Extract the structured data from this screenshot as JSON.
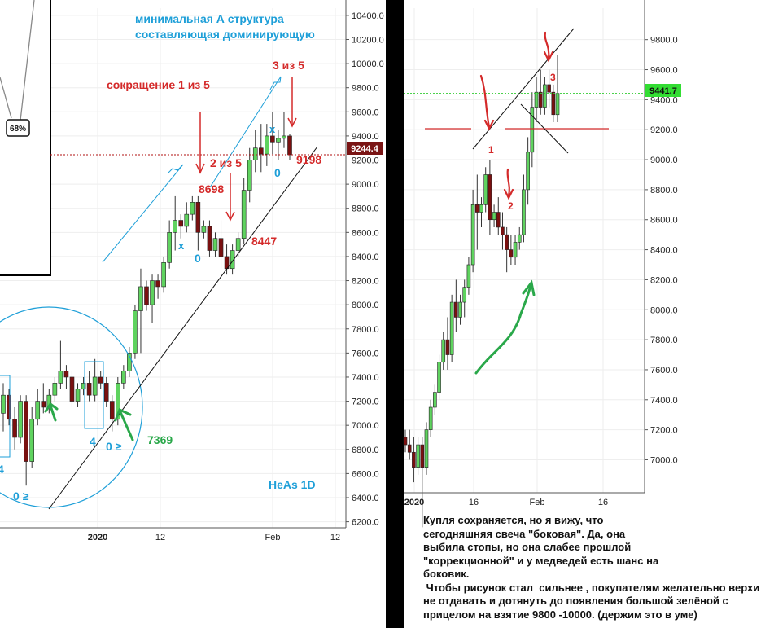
{
  "chart_data": [
    {
      "type": "candlestick",
      "watermark": "HeAs 1D",
      "y_ticks": [
        "10400.0",
        "10200.0",
        "10000.0",
        "9800.0",
        "9600.0",
        "9400.0",
        "9200.0",
        "9000.0",
        "8800.0",
        "8600.0",
        "8400.0",
        "8200.0",
        "8000.0",
        "7800.0",
        "7600.0",
        "7400.0",
        "7200.0",
        "7000.0",
        "6800.0",
        "6600.0",
        "6400.0",
        "6200.0"
      ],
      "x_ticks": [
        "2020",
        "12",
        "Feb",
        "12"
      ],
      "price_line": {
        "label": "9244.4",
        "value": 9244.4
      },
      "ylim": [
        6150,
        10460
      ],
      "candles": [
        {
          "o": 7100,
          "h": 7350,
          "l": 6950,
          "c": 7250
        },
        {
          "o": 7250,
          "h": 7300,
          "l": 7000,
          "c": 7050
        },
        {
          "o": 7050,
          "h": 7150,
          "l": 6800,
          "c": 6900
        },
        {
          "o": 6900,
          "h": 7250,
          "l": 6850,
          "c": 7200
        },
        {
          "o": 7200,
          "h": 7250,
          "l": 6500,
          "c": 6700
        },
        {
          "o": 6700,
          "h": 7150,
          "l": 6650,
          "c": 7050
        },
        {
          "o": 7050,
          "h": 7300,
          "l": 7000,
          "c": 7200
        },
        {
          "o": 7200,
          "h": 7350,
          "l": 7100,
          "c": 7150
        },
        {
          "o": 7150,
          "h": 7300,
          "l": 7100,
          "c": 7250
        },
        {
          "o": 7250,
          "h": 7400,
          "l": 7200,
          "c": 7350
        },
        {
          "o": 7350,
          "h": 7700,
          "l": 7300,
          "c": 7450
        },
        {
          "o": 7450,
          "h": 7500,
          "l": 7300,
          "c": 7400
        },
        {
          "o": 7400,
          "h": 7450,
          "l": 7150,
          "c": 7200
        },
        {
          "o": 7200,
          "h": 7350,
          "l": 7150,
          "c": 7300
        },
        {
          "o": 7300,
          "h": 7400,
          "l": 7250,
          "c": 7350
        },
        {
          "o": 7350,
          "h": 7450,
          "l": 7200,
          "c": 7250
        },
        {
          "o": 7250,
          "h": 7550,
          "l": 7200,
          "c": 7400
        },
        {
          "o": 7400,
          "h": 7450,
          "l": 7300,
          "c": 7350
        },
        {
          "o": 7350,
          "h": 7400,
          "l": 7150,
          "c": 7200
        },
        {
          "o": 7200,
          "h": 7250,
          "l": 6950,
          "c": 7050
        },
        {
          "o": 7050,
          "h": 7400,
          "l": 7000,
          "c": 7350
        },
        {
          "o": 7350,
          "h": 7500,
          "l": 7300,
          "c": 7450
        },
        {
          "o": 7450,
          "h": 7650,
          "l": 7400,
          "c": 7600
        },
        {
          "o": 7600,
          "h": 8000,
          "l": 7550,
          "c": 7950
        },
        {
          "o": 7950,
          "h": 8300,
          "l": 7600,
          "c": 8150
        },
        {
          "o": 8150,
          "h": 8200,
          "l": 7950,
          "c": 8000
        },
        {
          "o": 8000,
          "h": 8250,
          "l": 7850,
          "c": 8200
        },
        {
          "o": 8200,
          "h": 8250,
          "l": 8050,
          "c": 8150
        },
        {
          "o": 8150,
          "h": 8400,
          "l": 8100,
          "c": 8350
        },
        {
          "o": 8350,
          "h": 8700,
          "l": 8300,
          "c": 8600
        },
        {
          "o": 8600,
          "h": 8900,
          "l": 8450,
          "c": 8700
        },
        {
          "o": 8700,
          "h": 8750,
          "l": 8550,
          "c": 8650
        },
        {
          "o": 8650,
          "h": 8850,
          "l": 8600,
          "c": 8750
        },
        {
          "o": 8750,
          "h": 8900,
          "l": 8700,
          "c": 8850
        },
        {
          "o": 8850,
          "h": 8900,
          "l": 8450,
          "c": 8600
        },
        {
          "o": 8600,
          "h": 8700,
          "l": 8550,
          "c": 8650
        },
        {
          "o": 8650,
          "h": 8700,
          "l": 8400,
          "c": 8450
        },
        {
          "o": 8450,
          "h": 8600,
          "l": 8400,
          "c": 8550
        },
        {
          "o": 8550,
          "h": 8700,
          "l": 8300,
          "c": 8400
        },
        {
          "o": 8400,
          "h": 8500,
          "l": 8250,
          "c": 8300
        },
        {
          "o": 8300,
          "h": 8500,
          "l": 8250,
          "c": 8450
        },
        {
          "o": 8450,
          "h": 8600,
          "l": 8400,
          "c": 8550
        },
        {
          "o": 8550,
          "h": 9050,
          "l": 8500,
          "c": 8950
        },
        {
          "o": 8950,
          "h": 9300,
          "l": 8850,
          "c": 9200
        },
        {
          "o": 9200,
          "h": 9450,
          "l": 9100,
          "c": 9300
        },
        {
          "o": 9300,
          "h": 9500,
          "l": 9100,
          "c": 9250
        },
        {
          "o": 9250,
          "h": 9500,
          "l": 9150,
          "c": 9400
        },
        {
          "o": 9400,
          "h": 9600,
          "l": 9250,
          "c": 9350
        },
        {
          "o": 9350,
          "h": 9450,
          "l": 9200,
          "c": 9380
        },
        {
          "o": 9380,
          "h": 9600,
          "l": 9300,
          "c": 9400
        },
        {
          "o": 9400,
          "h": 9420,
          "l": 9200,
          "c": 9244.4
        }
      ],
      "annotations": {
        "title_line1": "минимальная А структура",
        "title_line2": "составляющая доминирующую",
        "cut": "сокращение  1 из 5",
        "three_of_five": "3 из 5",
        "two_of_five": "2 из 5",
        "v8698": "8698",
        "v8447": "8447",
        "v9198": "9198",
        "v7369": "7369",
        "zero_a": "0",
        "zero_b": "0",
        "x_a": "x",
        "x_b": "x",
        "four_a": "4",
        "four_b": "4",
        "zero_ge_a": "0 ≥",
        "zero_ge_b": "0 ≥",
        "pct": "68%"
      }
    },
    {
      "type": "candlestick",
      "y_ticks": [
        "9800.0",
        "9600.0",
        "9400.0",
        "9200.0",
        "9000.0",
        "8800.0",
        "8600.0",
        "8400.0",
        "8200.0",
        "8000.0",
        "7800.0",
        "7600.0",
        "7400.0",
        "7200.0",
        "7000.0"
      ],
      "x_ticks": [
        "2020",
        "16",
        "Feb",
        "16"
      ],
      "price_line": {
        "label": "9441.7",
        "value": 9441.7
      },
      "ylim": [
        6780,
        10010
      ],
      "candles": [
        {
          "o": 7150,
          "h": 7200,
          "l": 7050,
          "c": 7100
        },
        {
          "o": 7100,
          "h": 7200,
          "l": 7000,
          "c": 7050
        },
        {
          "o": 7050,
          "h": 7150,
          "l": 6850,
          "c": 6950
        },
        {
          "o": 6950,
          "h": 7150,
          "l": 6900,
          "c": 7100
        },
        {
          "o": 7100,
          "h": 7150,
          "l": 6550,
          "c": 6950
        },
        {
          "o": 6950,
          "h": 7250,
          "l": 6900,
          "c": 7200
        },
        {
          "o": 7200,
          "h": 7400,
          "l": 7150,
          "c": 7350
        },
        {
          "o": 7350,
          "h": 7500,
          "l": 7300,
          "c": 7450
        },
        {
          "o": 7450,
          "h": 7700,
          "l": 7400,
          "c": 7650
        },
        {
          "o": 7650,
          "h": 7850,
          "l": 7600,
          "c": 7800
        },
        {
          "o": 7800,
          "h": 7950,
          "l": 7600,
          "c": 7700
        },
        {
          "o": 7700,
          "h": 8100,
          "l": 7650,
          "c": 8050
        },
        {
          "o": 8050,
          "h": 8200,
          "l": 7850,
          "c": 7950
        },
        {
          "o": 7950,
          "h": 8100,
          "l": 7900,
          "c": 8050
        },
        {
          "o": 8050,
          "h": 8200,
          "l": 7950,
          "c": 8150
        },
        {
          "o": 8150,
          "h": 8350,
          "l": 8100,
          "c": 8300
        },
        {
          "o": 8300,
          "h": 8800,
          "l": 8250,
          "c": 8700
        },
        {
          "o": 8700,
          "h": 8900,
          "l": 8400,
          "c": 8650
        },
        {
          "o": 8650,
          "h": 8750,
          "l": 8550,
          "c": 8700
        },
        {
          "o": 8700,
          "h": 8950,
          "l": 8650,
          "c": 8900
        },
        {
          "o": 8900,
          "h": 9000,
          "l": 8500,
          "c": 8600
        },
        {
          "o": 8600,
          "h": 8700,
          "l": 8550,
          "c": 8650
        },
        {
          "o": 8650,
          "h": 8750,
          "l": 8500,
          "c": 8550
        },
        {
          "o": 8550,
          "h": 8650,
          "l": 8400,
          "c": 8500
        },
        {
          "o": 8500,
          "h": 8550,
          "l": 8250,
          "c": 8400
        },
        {
          "o": 8400,
          "h": 8500,
          "l": 8300,
          "c": 8350
        },
        {
          "o": 8350,
          "h": 8500,
          "l": 8300,
          "c": 8450
        },
        {
          "o": 8450,
          "h": 8550,
          "l": 8400,
          "c": 8500
        },
        {
          "o": 8500,
          "h": 8900,
          "l": 8450,
          "c": 8800
        },
        {
          "o": 8800,
          "h": 9150,
          "l": 8700,
          "c": 9050
        },
        {
          "o": 9050,
          "h": 9450,
          "l": 8950,
          "c": 9350
        },
        {
          "o": 9350,
          "h": 9550,
          "l": 9250,
          "c": 9450
        },
        {
          "o": 9450,
          "h": 9600,
          "l": 9300,
          "c": 9350
        },
        {
          "o": 9350,
          "h": 9550,
          "l": 9300,
          "c": 9500
        },
        {
          "o": 9500,
          "h": 9600,
          "l": 9350,
          "c": 9450
        },
        {
          "o": 9450,
          "h": 9500,
          "l": 9250,
          "c": 9300
        },
        {
          "o": 9300,
          "h": 9700,
          "l": 9250,
          "c": 9441.7
        }
      ],
      "annotations": {
        "one": "1",
        "two": "2",
        "three": "3"
      }
    }
  ],
  "note": {
    "line1": "Купля сохраняется, но я вижу, что",
    "line2": "сегодняшняя свеча \"боковая\". Да, она",
    "line3": "выбила стопы, но она слабее прошлой",
    "line4": "\"коррекционной\" и у медведей есть шанс на",
    "line5": "боковик.",
    "line6": " Чтобы рисунок стал  сильнее , покупателям желательно верхи",
    "line7": "не отдавать и дотянуть до появления большой зелёной с",
    "line8": "прицелом на взятие 9800 -10000.  (держим это в уме)"
  },
  "colors": {
    "up": "#5fd35f",
    "down": "#7a1010",
    "blue_ann": "#1e9fd8",
    "red_ann": "#d42a2a",
    "green_ann": "#2aa84a",
    "price_tag_dark": "#7a1414",
    "price_tag_green": "#33dd33"
  }
}
